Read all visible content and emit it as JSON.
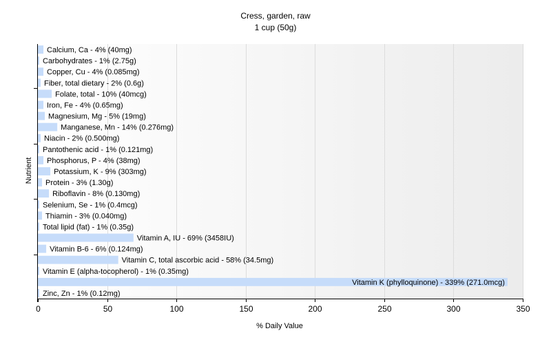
{
  "chart_data": {
    "type": "bar",
    "orientation": "horizontal",
    "title": "Cress, garden, raw",
    "subtitle": "1 cup (50g)",
    "xlabel": "% Daily Value",
    "ylabel": "Nutrient",
    "xlim": [
      0,
      350
    ],
    "xticks": [
      0,
      50,
      100,
      150,
      200,
      250,
      300,
      350
    ],
    "grid": true,
    "bar_color": "#c6dcfa",
    "categories": [
      "Calcium, Ca",
      "Carbohydrates",
      "Copper, Cu",
      "Fiber, total dietary",
      "Folate, total",
      "Iron, Fe",
      "Magnesium, Mg",
      "Manganese, Mn",
      "Niacin",
      "Pantothenic acid",
      "Phosphorus, P",
      "Potassium, K",
      "Protein",
      "Riboflavin",
      "Selenium, Se",
      "Thiamin",
      "Total lipid (fat)",
      "Vitamin A, IU",
      "Vitamin B-6",
      "Vitamin C, total ascorbic acid",
      "Vitamin E (alpha-tocopherol)",
      "Vitamin K (phylloquinone)",
      "Zinc, Zn"
    ],
    "values": [
      4,
      1,
      4,
      2,
      10,
      4,
      5,
      14,
      2,
      1,
      4,
      9,
      3,
      8,
      1,
      3,
      1,
      69,
      6,
      58,
      1,
      339,
      1
    ],
    "labels": [
      "Calcium, Ca - 4% (40mg)",
      "Carbohydrates - 1% (2.75g)",
      "Copper, Cu - 4% (0.085mg)",
      "Fiber, total dietary - 2% (0.6g)",
      "Folate, total - 10% (40mcg)",
      "Iron, Fe - 4% (0.65mg)",
      "Magnesium, Mg - 5% (19mg)",
      "Manganese, Mn - 14% (0.276mg)",
      "Niacin - 2% (0.500mg)",
      "Pantothenic acid - 1% (0.121mg)",
      "Phosphorus, P - 4% (38mg)",
      "Potassium, K - 9% (303mg)",
      "Protein - 3% (1.30g)",
      "Riboflavin - 8% (0.130mg)",
      "Selenium, Se - 1% (0.4mcg)",
      "Thiamin - 3% (0.040mg)",
      "Total lipid (fat) - 1% (0.35g)",
      "Vitamin A, IU - 69% (3458IU)",
      "Vitamin B-6 - 6% (0.124mg)",
      "Vitamin C, total ascorbic acid - 58% (34.5mg)",
      "Vitamin E (alpha-tocopherol) - 1% (0.35mg)",
      "Vitamin K (phylloquinone) - 339% (271.0mcg)",
      "Zinc, Zn - 1% (0.12mg)"
    ]
  }
}
